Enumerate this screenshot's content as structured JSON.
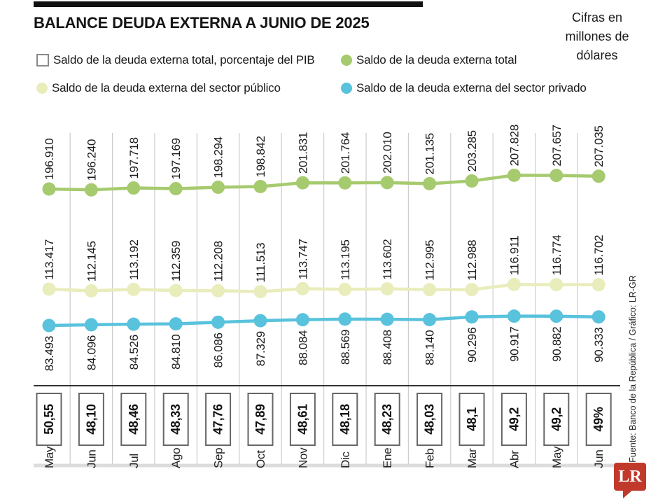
{
  "header": {
    "title": "BALANCE DEUDA EXTERNA A JUNIO DE 2025",
    "unit_note": "Cifras en millones de dólares"
  },
  "legend": {
    "items": [
      {
        "shape": "square-outline",
        "color": "#ffffff",
        "label": "Saldo de la deuda externa total, porcentaje del PIB"
      },
      {
        "shape": "dot",
        "color": "#a6ca6e",
        "label": "Saldo de la deuda externa total"
      },
      {
        "shape": "dot",
        "color": "#e9edbc",
        "label": "Saldo de la deuda externa del sector público"
      },
      {
        "shape": "dot",
        "color": "#59c2dd",
        "label": "Saldo de la deuda externa del sector privado"
      }
    ]
  },
  "chart_data": {
    "type": "line",
    "title": "BALANCE DEUDA EXTERNA A JUNIO DE 2025",
    "unit": "millones de dólares",
    "categories": [
      "May",
      "Jun",
      "Jul",
      "Ago",
      "Sep",
      "Oct",
      "Nov",
      "Dic",
      "Ene",
      "Feb",
      "Mar",
      "Abr",
      "May",
      "Jun"
    ],
    "series": [
      {
        "name": "Saldo de la deuda externa total",
        "color": "#a6ca6e",
        "values": [
          196910,
          196240,
          197718,
          197169,
          198294,
          198842,
          201831,
          201764,
          202010,
          201135,
          203285,
          207828,
          207657,
          207035
        ]
      },
      {
        "name": "Saldo de la deuda externa del sector público",
        "color": "#e9edbc",
        "values": [
          113417,
          112145,
          113192,
          112359,
          112208,
          111513,
          113747,
          113195,
          113602,
          112995,
          112988,
          116911,
          116774,
          116702
        ]
      },
      {
        "name": "Saldo de la deuda externa del sector privado",
        "color": "#59c2dd",
        "values": [
          83493,
          84096,
          84526,
          84810,
          86086,
          87329,
          88084,
          88569,
          88408,
          88140,
          90296,
          90917,
          90882,
          90333
        ]
      }
    ],
    "pib_percent": {
      "name": "Saldo de la deuda externa total, porcentaje del PIB",
      "values": [
        "50,55",
        "48,10",
        "48,46",
        "48,33",
        "47,76",
        "47,89",
        "48,61",
        "48,18",
        "48,23",
        "48,03",
        "48,1",
        "49,2",
        "49,2",
        "49%"
      ]
    },
    "legend_position": "top",
    "grid": "vertical-between-points"
  },
  "footer": {
    "source": "Fuente: Banco de la República / Gráfico: LR-GR",
    "logo_text": "LR",
    "logo_color": "#c0392b"
  },
  "colors": {
    "accent_green": "#a6ca6e",
    "accent_cream": "#e9edbc",
    "accent_blue": "#59c2dd",
    "gridline": "#cccccc",
    "axis_dark": "#333333",
    "axis_light": "#dcdcdc",
    "box_border": "#666666",
    "text": "#1a1a1a"
  }
}
